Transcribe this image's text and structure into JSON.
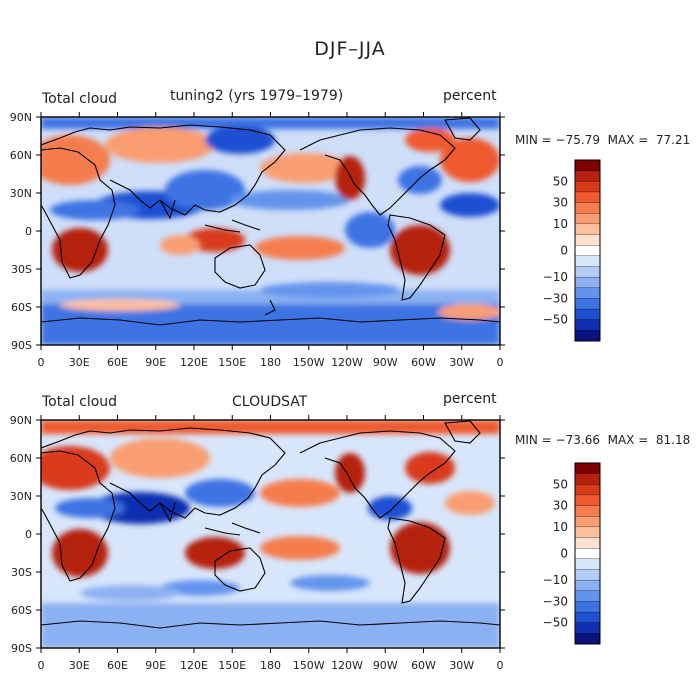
{
  "title": "DJF–JJA",
  "xticks": [
    "0",
    "30E",
    "60E",
    "90E",
    "120E",
    "150E",
    "180",
    "150W",
    "120W",
    "90W",
    "60W",
    "30W",
    "0"
  ],
  "yticks": [
    "90N",
    "60N",
    "30N",
    "0",
    "30S",
    "60S",
    "90S"
  ],
  "panels": [
    {
      "left_label": "Total cloud",
      "center_label": "tuning2 (yrs 1979–1979)",
      "right_label": "percent",
      "minmax": "MIN = −75.79  MAX =  77.21"
    },
    {
      "left_label": "Total cloud",
      "center_label": "CLOUDSAT",
      "right_label": "percent",
      "minmax": "MIN = −73.66  MAX =  81.18"
    }
  ],
  "colorbar": {
    "labels": [
      "50",
      "30",
      "10",
      "0",
      "−10",
      "−30",
      "−50"
    ],
    "colors": [
      "#7f0000",
      "#b5200f",
      "#d93a1a",
      "#ef5a2e",
      "#f57d4e",
      "#f99e72",
      "#fcc09e",
      "#fde0cd",
      "#ffffff",
      "#d8e6fb",
      "#b3cdf7",
      "#8cb1f2",
      "#6394ec",
      "#3d73e3",
      "#1f50d2",
      "#0f2fb0",
      "#08137e"
    ]
  },
  "chart_data": {
    "type": "heatmap",
    "description_fields": [
      "lon",
      "lat"
    ],
    "variable": "Total cloud",
    "units": "percent",
    "xlim": [
      0,
      360
    ],
    "ylim": [
      -90,
      90
    ],
    "clevels": [
      -70,
      -60,
      -50,
      -40,
      -30,
      -20,
      -10,
      -5,
      5,
      10,
      20,
      30,
      40,
      50,
      60,
      70
    ],
    "panels": [
      {
        "name": "tuning2 (yrs 1979–1979)",
        "min": -75.79,
        "max": 77.21
      },
      {
        "name": "CLOUDSAT",
        "min": -73.66,
        "max": 81.18
      }
    ]
  }
}
